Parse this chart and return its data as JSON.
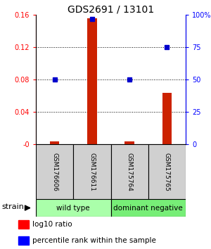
{
  "title": "GDS2691 / 13101",
  "samples": [
    "GSM176606",
    "GSM176611",
    "GSM175764",
    "GSM175765"
  ],
  "log10_ratio": [
    0.004,
    0.156,
    0.004,
    0.064
  ],
  "percentile_rank": [
    50,
    97,
    50,
    75
  ],
  "groups": [
    {
      "label": "wild type",
      "samples": [
        0,
        1
      ],
      "color": "#aaffaa"
    },
    {
      "label": "dominant negative",
      "samples": [
        2,
        3
      ],
      "color": "#77ee77"
    }
  ],
  "left_ylim": [
    0,
    0.16
  ],
  "right_ylim": [
    0,
    100
  ],
  "left_yticks": [
    0,
    0.04,
    0.08,
    0.12,
    0.16
  ],
  "left_yticklabels": [
    "-0",
    "0.04",
    "0.08",
    "0.12",
    "0.16"
  ],
  "right_yticks": [
    0,
    25,
    50,
    75,
    100
  ],
  "right_yticklabels": [
    "0",
    "25",
    "50",
    "75",
    "100%"
  ],
  "bar_color": "#CC2200",
  "dot_color": "#0000CC",
  "bar_width": 0.25,
  "legend_red_label": "log10 ratio",
  "legend_blue_label": "percentile rank within the sample",
  "strain_label": "strain",
  "sample_box_color": "#D0D0D0",
  "group_colors": [
    "#aaffaa",
    "#77ee77"
  ],
  "figsize": [
    3.0,
    3.54
  ],
  "dpi": 100
}
